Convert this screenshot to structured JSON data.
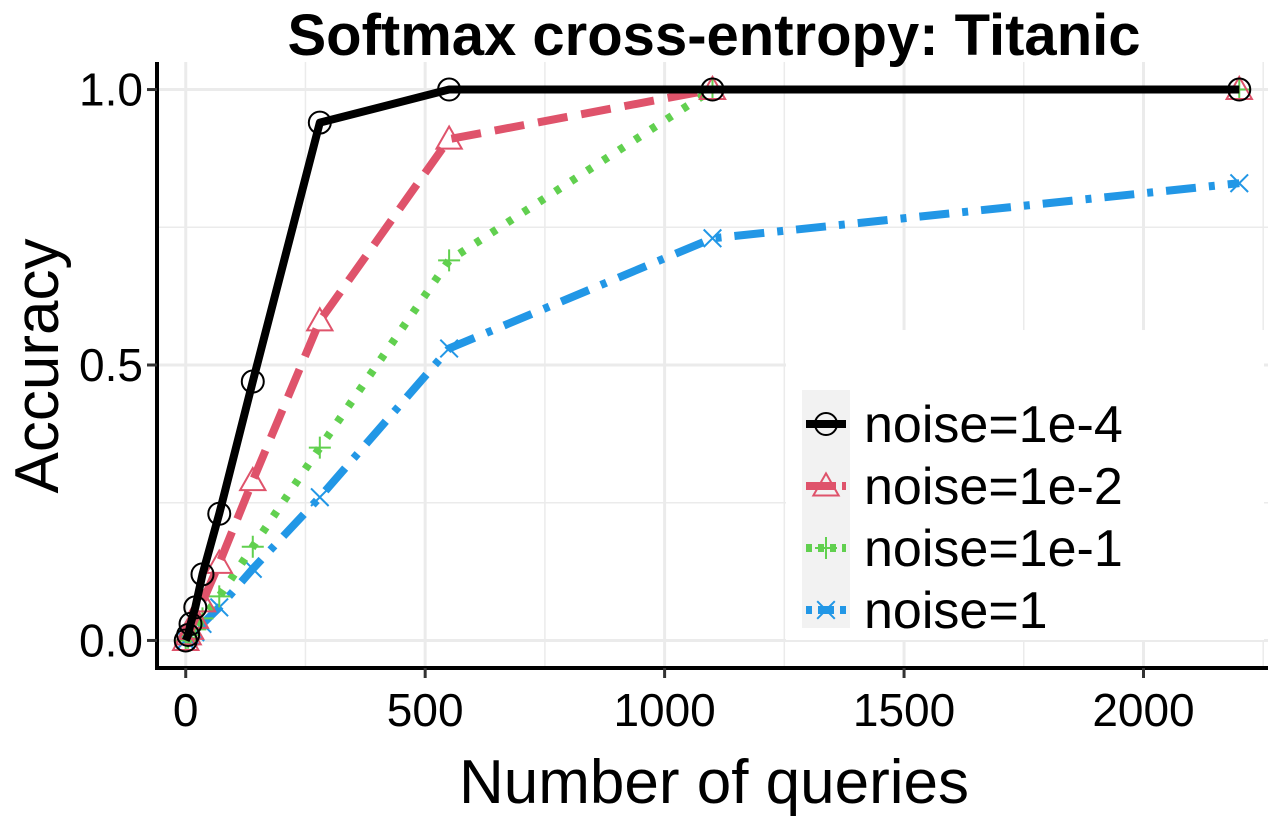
{
  "chart_data": {
    "type": "line",
    "title": "Softmax cross-entropy: Titanic",
    "xlabel": "Number of queries",
    "ylabel": "Accuracy",
    "xlim": [
      -60,
      2260
    ],
    "ylim": [
      -0.05,
      1.05
    ],
    "xticks": [
      0,
      500,
      1000,
      1500,
      2000
    ],
    "xtick_labels": [
      "0",
      "500",
      "1000",
      "1500",
      "2000"
    ],
    "yticks": [
      0.0,
      0.5,
      1.0
    ],
    "ytick_labels": [
      "0.0",
      "0.5",
      "1.0"
    ],
    "grid": true,
    "legend_position": "bottom-right",
    "series": [
      {
        "name": "noise=1e-4",
        "label": "noise=1e-4",
        "color": "#000000",
        "dash": "solid",
        "marker": "circle",
        "x": [
          0,
          5,
          10,
          20,
          35,
          70,
          140,
          280,
          550,
          1100,
          2200
        ],
        "y": [
          0.0,
          0.01,
          0.03,
          0.06,
          0.12,
          0.23,
          0.47,
          0.94,
          1.0,
          1.0,
          1.0
        ]
      },
      {
        "name": "noise=1e-2",
        "label": "noise=1e-2",
        "color": "#DF536B",
        "dash": "dashed",
        "marker": "triangle",
        "x": [
          0,
          5,
          10,
          20,
          35,
          70,
          140,
          280,
          550,
          1100,
          2200
        ],
        "y": [
          0.0,
          0.01,
          0.02,
          0.04,
          0.07,
          0.14,
          0.29,
          0.58,
          0.91,
          1.0,
          1.0
        ]
      },
      {
        "name": "noise=1e-1",
        "label": "noise=1e-1",
        "color": "#61D04F",
        "dash": "dotted",
        "marker": "plus",
        "x": [
          0,
          5,
          10,
          20,
          35,
          70,
          140,
          280,
          550,
          1100,
          2200
        ],
        "y": [
          0.0,
          0.005,
          0.01,
          0.02,
          0.04,
          0.08,
          0.17,
          0.35,
          0.69,
          1.0,
          1.0
        ]
      },
      {
        "name": "noise=1",
        "label": "noise=1",
        "color": "#2297E6",
        "dash": "dotdash",
        "marker": "x",
        "x": [
          0,
          5,
          10,
          20,
          35,
          70,
          140,
          280,
          550,
          1100,
          2200
        ],
        "y": [
          0.0,
          0.005,
          0.008,
          0.015,
          0.03,
          0.06,
          0.13,
          0.26,
          0.53,
          0.73,
          0.83
        ]
      }
    ]
  }
}
